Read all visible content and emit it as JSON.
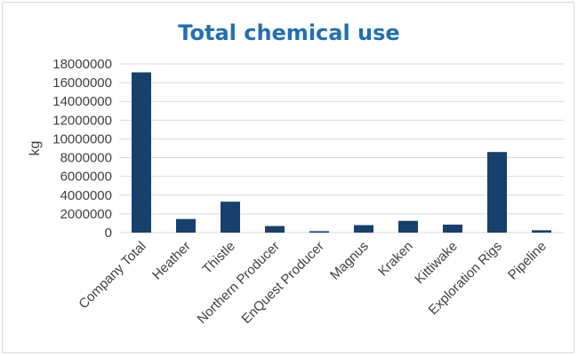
{
  "chart_data": {
    "type": "bar",
    "title": "Total chemical use",
    "ylabel": "kg",
    "xlabel": "",
    "categories": [
      "Company Total",
      "Heather",
      "Thistle",
      "Northern Producer",
      "EnQuest Producer",
      "Magnus",
      "Kraken",
      "Kittiwake",
      "Exploration Rigs",
      "Pipeline"
    ],
    "values": [
      17100000,
      1450000,
      3300000,
      700000,
      150000,
      800000,
      1250000,
      850000,
      8600000,
      250000
    ],
    "ylim": [
      0,
      18000000
    ],
    "yticks": [
      "0",
      "2000000",
      "4000000",
      "6000000",
      "8000000",
      "10000000",
      "12000000",
      "14000000",
      "16000000",
      "18000000"
    ],
    "grid": true,
    "legend": "none",
    "bar_color": "#17406d",
    "grid_color": "#d9d9d9"
  }
}
